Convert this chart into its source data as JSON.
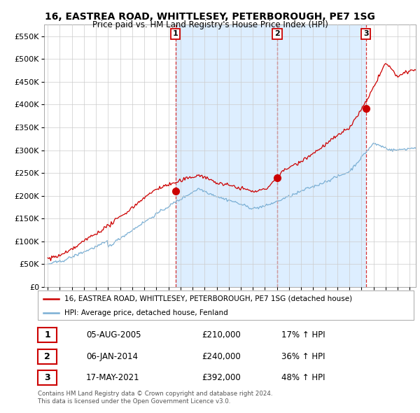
{
  "title": "16, EASTREA ROAD, WHITTLESEY, PETERBOROUGH, PE7 1SG",
  "subtitle": "Price paid vs. HM Land Registry's House Price Index (HPI)",
  "ylim": [
    0,
    575000
  ],
  "yticks": [
    0,
    50000,
    100000,
    150000,
    200000,
    250000,
    300000,
    350000,
    400000,
    450000,
    500000,
    550000
  ],
  "xlim_start": 1994.7,
  "xlim_end": 2025.5,
  "sale_color": "#cc0000",
  "hpi_color": "#7aafd4",
  "shade_color": "#ddeeff",
  "background_color": "#ffffff",
  "grid_color": "#cccccc",
  "transaction_dates": [
    2005.585,
    2014.014,
    2021.37
  ],
  "transaction_prices": [
    210000,
    240000,
    392000
  ],
  "transaction_labels": [
    "1",
    "2",
    "3"
  ],
  "legend_sale_label": "16, EASTREA ROAD, WHITTLESEY, PETERBOROUGH, PE7 1SG (detached house)",
  "legend_hpi_label": "HPI: Average price, detached house, Fenland",
  "table_rows": [
    {
      "num": "1",
      "date": "05-AUG-2005",
      "price": "£210,000",
      "change": "17% ↑ HPI"
    },
    {
      "num": "2",
      "date": "06-JAN-2014",
      "price": "£240,000",
      "change": "36% ↑ HPI"
    },
    {
      "num": "3",
      "date": "17-MAY-2021",
      "price": "£392,000",
      "change": "48% ↑ HPI"
    }
  ],
  "footnote": "Contains HM Land Registry data © Crown copyright and database right 2024.\nThis data is licensed under the Open Government Licence v3.0."
}
